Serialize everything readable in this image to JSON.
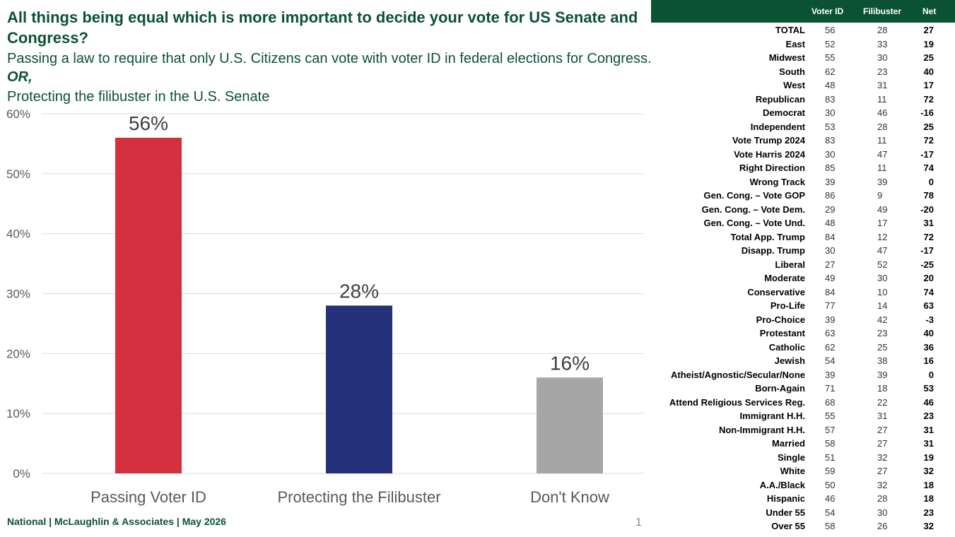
{
  "header": {
    "title": "All things being equal which is more important to decide your vote for US Senate and Congress?",
    "option_a": "Passing a law to require that only U.S. Citizens can vote with voter ID in federal elections for Congress.",
    "or_text": "OR,",
    "option_b": "Protecting the filibuster in the U.S. Senate"
  },
  "footer": {
    "source": "National | McLaughlin & Associates | May 2026",
    "page_number": "1"
  },
  "colors": {
    "brand_green": "#0b5234",
    "voter_id_bar": "#d32f3f",
    "filibuster_bar": "#25317a",
    "dont_know_bar": "#a6a6a6"
  },
  "chart_data": {
    "type": "bar",
    "categories": [
      "Passing Voter ID",
      "Protecting the Filibuster",
      "Don't Know"
    ],
    "values": [
      56,
      28,
      16
    ],
    "data_labels": [
      "56%",
      "28%",
      "16%"
    ],
    "bar_colors": [
      "#d32f3f",
      "#25317a",
      "#a6a6a6"
    ],
    "ylim": [
      0,
      60
    ],
    "yticks": [
      0,
      10,
      20,
      30,
      40,
      50,
      60
    ],
    "ytick_labels": [
      "0%",
      "10%",
      "20%",
      "30%",
      "40%",
      "50%",
      "60%"
    ],
    "grid": true,
    "legend": "none"
  },
  "table": {
    "columns": [
      "Voter ID",
      "Filibuster",
      "Net"
    ],
    "rows": [
      {
        "label": "TOTAL",
        "voter_id": "56",
        "filibuster": "28",
        "net": "27"
      },
      {
        "label": "East",
        "voter_id": "52",
        "filibuster": "33",
        "net": "19"
      },
      {
        "label": "Midwest",
        "voter_id": "55",
        "filibuster": "30",
        "net": "25"
      },
      {
        "label": "South",
        "voter_id": "62",
        "filibuster": "23",
        "net": "40"
      },
      {
        "label": "West",
        "voter_id": "48",
        "filibuster": "31",
        "net": "17"
      },
      {
        "label": "Republican",
        "voter_id": "83",
        "filibuster": "11",
        "net": "72"
      },
      {
        "label": "Democrat",
        "voter_id": "30",
        "filibuster": "46",
        "net": "-16"
      },
      {
        "label": "Independent",
        "voter_id": "53",
        "filibuster": "28",
        "net": "25"
      },
      {
        "label": "Vote Trump 2024",
        "voter_id": "83",
        "filibuster": "11",
        "net": "72"
      },
      {
        "label": "Vote Harris 2024",
        "voter_id": "30",
        "filibuster": "47",
        "net": "-17"
      },
      {
        "label": "Right Direction",
        "voter_id": "85",
        "filibuster": "11",
        "net": "74"
      },
      {
        "label": "Wrong Track",
        "voter_id": "39",
        "filibuster": "39",
        "net": "0"
      },
      {
        "label": "Gen. Cong. – Vote GOP",
        "voter_id": "86",
        "filibuster": "9",
        "net": "78"
      },
      {
        "label": "Gen. Cong. – Vote Dem.",
        "voter_id": "29",
        "filibuster": "49",
        "net": "-20"
      },
      {
        "label": "Gen. Cong. – Vote Und.",
        "voter_id": "48",
        "filibuster": "17",
        "net": "31"
      },
      {
        "label": "Total App. Trump",
        "voter_id": "84",
        "filibuster": "12",
        "net": "72"
      },
      {
        "label": "Disapp. Trump",
        "voter_id": "30",
        "filibuster": "47",
        "net": "-17"
      },
      {
        "label": "Liberal",
        "voter_id": "27",
        "filibuster": "52",
        "net": "-25"
      },
      {
        "label": "Moderate",
        "voter_id": "49",
        "filibuster": "30",
        "net": "20"
      },
      {
        "label": "Conservative",
        "voter_id": "84",
        "filibuster": "10",
        "net": "74"
      },
      {
        "label": "Pro-Life",
        "voter_id": "77",
        "filibuster": "14",
        "net": "63"
      },
      {
        "label": "Pro-Choice",
        "voter_id": "39",
        "filibuster": "42",
        "net": "-3"
      },
      {
        "label": "Protestant",
        "voter_id": "63",
        "filibuster": "23",
        "net": "40"
      },
      {
        "label": "Catholic",
        "voter_id": "62",
        "filibuster": "25",
        "net": "36"
      },
      {
        "label": "Jewish",
        "voter_id": "54",
        "filibuster": "38",
        "net": "16"
      },
      {
        "label": "Atheist/Agnostic/Secular/None",
        "voter_id": "39",
        "filibuster": "39",
        "net": "0"
      },
      {
        "label": "Born-Again",
        "voter_id": "71",
        "filibuster": "18",
        "net": "53"
      },
      {
        "label": "Attend Religious Services Reg.",
        "voter_id": "68",
        "filibuster": "22",
        "net": "46"
      },
      {
        "label": "Immigrant H.H.",
        "voter_id": "55",
        "filibuster": "31",
        "net": "23"
      },
      {
        "label": "Non-Immigrant H.H.",
        "voter_id": "57",
        "filibuster": "27",
        "net": "31"
      },
      {
        "label": "Married",
        "voter_id": "58",
        "filibuster": "27",
        "net": "31"
      },
      {
        "label": "Single",
        "voter_id": "51",
        "filibuster": "32",
        "net": "19"
      },
      {
        "label": "White",
        "voter_id": "59",
        "filibuster": "27",
        "net": "32"
      },
      {
        "label": "A.A./Black",
        "voter_id": "50",
        "filibuster": "32",
        "net": "18"
      },
      {
        "label": "Hispanic",
        "voter_id": "46",
        "filibuster": "28",
        "net": "18"
      },
      {
        "label": "Under 55",
        "voter_id": "54",
        "filibuster": "30",
        "net": "23"
      },
      {
        "label": "Over 55",
        "voter_id": "58",
        "filibuster": "26",
        "net": "32"
      }
    ]
  }
}
